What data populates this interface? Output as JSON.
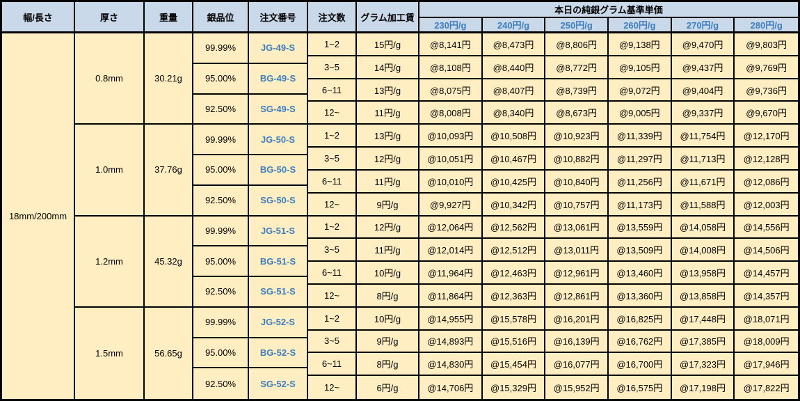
{
  "colors": {
    "header_bg": "#c9d9e9",
    "cell_bg": "#ffeec2",
    "accent_blue": "#3d7ebe",
    "border": "#000000"
  },
  "table": {
    "headers": {
      "width_length": "幅/長さ",
      "thickness": "厚さ",
      "weight": "重量",
      "purity": "銀品位",
      "order_no": "注文番号",
      "order_qty": "注文数",
      "fee": "グラム加工賃",
      "price_group": "本日の純銀グラム基準単価",
      "price_tiers": [
        "230円/g",
        "240円/g",
        "250円/g",
        "260円/g",
        "270円/g",
        "280円/g"
      ]
    },
    "width_length": "18mm/200mm",
    "sections": [
      {
        "thickness": "0.8mm",
        "weight": "30.21g",
        "purities": [
          {
            "purity": "99.99%",
            "order_no": "JG-49-S"
          },
          {
            "purity": "95.00%",
            "order_no": "BG-49-S"
          },
          {
            "purity": "92.50%",
            "order_no": "SG-49-S"
          }
        ],
        "qty_rows": [
          {
            "qty": "1~2",
            "fee": "15円/g",
            "prices": [
              "@8,141円",
              "@8,473円",
              "@8,806円",
              "@9,138円",
              "@9,470円",
              "@9,803円"
            ]
          },
          {
            "qty": "3~5",
            "fee": "14円/g",
            "prices": [
              "@8,108円",
              "@8,440円",
              "@8,772円",
              "@9,105円",
              "@9,437円",
              "@9,769円"
            ]
          },
          {
            "qty": "6~11",
            "fee": "13円/g",
            "prices": [
              "@8,075円",
              "@8,407円",
              "@8,739円",
              "@9,072円",
              "@9,404円",
              "@9,736円"
            ]
          },
          {
            "qty": "12~",
            "fee": "11円/g",
            "prices": [
              "@8,008円",
              "@8,340円",
              "@8,673円",
              "@9,005円",
              "@9,337円",
              "@9,670円"
            ]
          }
        ]
      },
      {
        "thickness": "1.0mm",
        "weight": "37.76g",
        "purities": [
          {
            "purity": "99.99%",
            "order_no": "JG-50-S"
          },
          {
            "purity": "95.00%",
            "order_no": "BG-50-S"
          },
          {
            "purity": "92.50%",
            "order_no": "SG-50-S"
          }
        ],
        "qty_rows": [
          {
            "qty": "1~2",
            "fee": "13円/g",
            "prices": [
              "@10,093円",
              "@10,508円",
              "@10,923円",
              "@11,339円",
              "@11,754円",
              "@12,170円"
            ]
          },
          {
            "qty": "3~5",
            "fee": "12円/g",
            "prices": [
              "@10,051円",
              "@10,467円",
              "@10,882円",
              "@11,297円",
              "@11,713円",
              "@12,128円"
            ]
          },
          {
            "qty": "6~11",
            "fee": "11円/g",
            "prices": [
              "@10,010円",
              "@10,425円",
              "@10,840円",
              "@11,256円",
              "@11,671円",
              "@12,086円"
            ]
          },
          {
            "qty": "12~",
            "fee": "9円/g",
            "prices": [
              "@9,927円",
              "@10,342円",
              "@10,757円",
              "@11,173円",
              "@11,588円",
              "@12,003円"
            ]
          }
        ]
      },
      {
        "thickness": "1.2mm",
        "weight": "45.32g",
        "purities": [
          {
            "purity": "99.99%",
            "order_no": "JG-51-S"
          },
          {
            "purity": "95.00%",
            "order_no": "BG-51-S"
          },
          {
            "purity": "92.50%",
            "order_no": "SG-51-S"
          }
        ],
        "qty_rows": [
          {
            "qty": "1~2",
            "fee": "12円/g",
            "prices": [
              "@12,064円",
              "@12,562円",
              "@13,061円",
              "@13,559円",
              "@14,058円",
              "@14,556円"
            ]
          },
          {
            "qty": "3~5",
            "fee": "11円/g",
            "prices": [
              "@12,014円",
              "@12,512円",
              "@13,011円",
              "@13,509円",
              "@14,008円",
              "@14,506円"
            ]
          },
          {
            "qty": "6~11",
            "fee": "10円/g",
            "prices": [
              "@11,964円",
              "@12,463円",
              "@12,961円",
              "@13,460円",
              "@13,958円",
              "@14,457円"
            ]
          },
          {
            "qty": "12~",
            "fee": "8円/g",
            "prices": [
              "@11,864円",
              "@12,363円",
              "@12,861円",
              "@13,360円",
              "@13,858円",
              "@14,357円"
            ]
          }
        ]
      },
      {
        "thickness": "1.5mm",
        "weight": "56.65g",
        "purities": [
          {
            "purity": "99.99%",
            "order_no": "JG-52-S"
          },
          {
            "purity": "95.00%",
            "order_no": "BG-52-S"
          },
          {
            "purity": "92.50%",
            "order_no": "SG-52-S"
          }
        ],
        "qty_rows": [
          {
            "qty": "1~2",
            "fee": "10円/g",
            "prices": [
              "@14,955円",
              "@15,578円",
              "@16,201円",
              "@16,825円",
              "@17,448円",
              "@18,071円"
            ]
          },
          {
            "qty": "3~5",
            "fee": "9円/g",
            "prices": [
              "@14,893円",
              "@15,516円",
              "@16,139円",
              "@16,762円",
              "@17,385円",
              "@18,009円"
            ]
          },
          {
            "qty": "6~11",
            "fee": "8円/g",
            "prices": [
              "@14,830円",
              "@15,454円",
              "@16,077円",
              "@16,700円",
              "@17,323円",
              "@17,946円"
            ]
          },
          {
            "qty": "12~",
            "fee": "6円/g",
            "prices": [
              "@14,706円",
              "@15,329円",
              "@15,952円",
              "@16,575円",
              "@17,198円",
              "@17,822円"
            ]
          }
        ]
      }
    ]
  }
}
